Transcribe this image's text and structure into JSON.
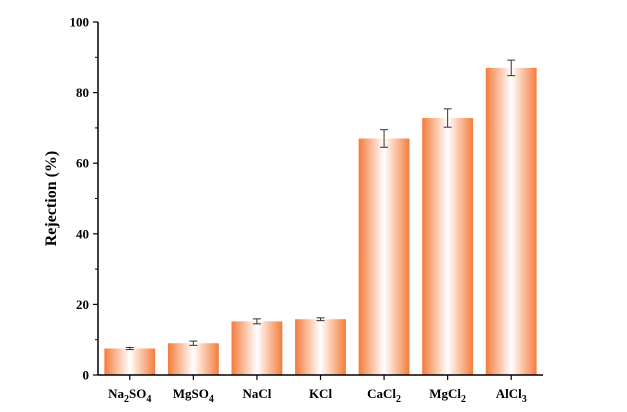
{
  "chart_data": {
    "type": "bar",
    "title": "",
    "xlabel": "",
    "ylabel": "Rejection (%)",
    "ylim": [
      0,
      100
    ],
    "yticks": [
      0,
      20,
      40,
      60,
      80,
      100
    ],
    "categories": [
      {
        "base": "Na",
        "sub1": "2",
        "mid": "SO",
        "sub2": "4",
        "name": "Na2SO4"
      },
      {
        "base": "MgSO",
        "sub1": "4",
        "mid": "",
        "sub2": "",
        "name": "MgSO4"
      },
      {
        "base": "NaCl",
        "sub1": "",
        "mid": "",
        "sub2": "",
        "name": "NaCl"
      },
      {
        "base": "KCl",
        "sub1": "",
        "mid": "",
        "sub2": "",
        "name": "KCl"
      },
      {
        "base": "CaCl",
        "sub1": "2",
        "mid": "",
        "sub2": "",
        "name": "CaCl2"
      },
      {
        "base": "MgCl",
        "sub1": "2",
        "mid": "",
        "sub2": "",
        "name": "MgCl2"
      },
      {
        "base": "AlCl",
        "sub1": "3",
        "mid": "",
        "sub2": "",
        "name": "AlCl3"
      }
    ],
    "values": [
      7.5,
      9.0,
      15.2,
      15.8,
      67.0,
      72.8,
      87.0
    ],
    "errors": [
      0.3,
      0.6,
      0.7,
      0.4,
      2.5,
      2.6,
      2.2
    ],
    "grid": false,
    "legend": "none",
    "bar_colors": {
      "edge": "#f47c3c",
      "center": "#ffffff"
    }
  }
}
